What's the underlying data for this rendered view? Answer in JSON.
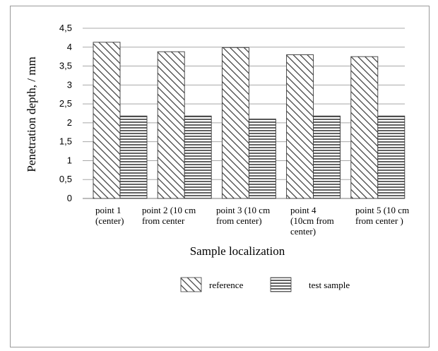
{
  "chart_data": {
    "type": "bar",
    "categories": [
      [
        "point 1",
        "(center)"
      ],
      [
        "point 2 (10 cm",
        "from center"
      ],
      [
        "point 3 (10 cm",
        "from center)"
      ],
      [
        "point 4",
        "(10cm from",
        "center)"
      ],
      [
        "point 5 (10 cm",
        "from center )"
      ]
    ],
    "series": [
      {
        "name": "reference",
        "values": [
          4.13,
          3.88,
          3.99,
          3.8,
          3.75
        ],
        "pattern": "diagonal-hatch"
      },
      {
        "name": "test sample",
        "values": [
          2.18,
          2.18,
          2.1,
          2.18,
          2.18
        ],
        "pattern": "horizontal-lines"
      }
    ],
    "y_ticks": [
      "0",
      "0,5",
      "1",
      "1,5",
      "2",
      "2,5",
      "3",
      "3,5",
      "4",
      "4,5"
    ],
    "ylim": [
      0,
      4.5
    ],
    "xlabel": "Sample localization",
    "ylabel": "Penetration depth, / mm",
    "grid": true,
    "legend_position": "bottom"
  }
}
